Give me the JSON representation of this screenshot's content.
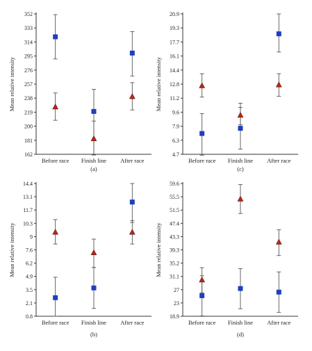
{
  "colors": {
    "square": "#1f3fbf",
    "triangle": "#b5281c",
    "axis": "#333333",
    "error": "#555555"
  },
  "chart_data": [
    {
      "id": "a",
      "type": "scatter",
      "caption": "(a)",
      "ylabel": "Mean relative intensity",
      "categories": [
        "Before race",
        "Finish line",
        "After race"
      ],
      "yticks": [
        "162",
        "181",
        "200",
        "219",
        "238",
        "257",
        "276",
        "295",
        "314",
        "333",
        "352"
      ],
      "ylim": [
        162,
        352
      ],
      "series": [
        {
          "marker": "square",
          "values": [
            321,
            220,
            299
          ],
          "err_low": [
            291,
            161,
            268
          ],
          "err_high": [
            351,
            250,
            328
          ]
        },
        {
          "marker": "triangle",
          "values": [
            226,
            183,
            240
          ],
          "err_low": [
            208,
            161,
            222
          ],
          "err_high": [
            245,
            207,
            259
          ]
        }
      ]
    },
    {
      "id": "c",
      "type": "scatter",
      "caption": "(c)",
      "ylabel": "Mean relative intensity",
      "categories": [
        "Before race",
        "Finish line",
        "After race"
      ],
      "yticks": [
        "4.7",
        "6.3",
        "7.9",
        "9.6",
        "11.2",
        "12.8",
        "14.4",
        "16.1",
        "17.7",
        "19.3",
        "20.9"
      ],
      "ylim": [
        4.7,
        20.9
      ],
      "series": [
        {
          "marker": "square",
          "values": [
            7.1,
            7.7,
            18.6
          ],
          "err_low": [
            4.6,
            5.3,
            16.5
          ],
          "err_high": [
            9.4,
            10.1,
            20.9
          ]
        },
        {
          "marker": "triangle",
          "values": [
            12.6,
            9.2,
            12.7
          ],
          "err_low": [
            11.3,
            8.1,
            11.4
          ],
          "err_high": [
            14.0,
            10.6,
            14.0
          ]
        }
      ]
    },
    {
      "id": "b",
      "type": "scatter",
      "caption": "(b)",
      "ylabel": "Mean relative intensity",
      "categories": [
        "Before race",
        "Finish line",
        "After race"
      ],
      "yticks": [
        "0.8",
        "2.1",
        "3.5",
        "4.9",
        "6.2",
        "7.6",
        "9",
        "10.3",
        "11.7",
        "13.1",
        "14.4"
      ],
      "ylim": [
        0.8,
        14.4
      ],
      "series": [
        {
          "marker": "square",
          "values": [
            2.7,
            3.7,
            12.5
          ],
          "err_low": [
            0.8,
            1.6,
            10.4
          ],
          "err_high": [
            4.8,
            5.8,
            14.4
          ]
        },
        {
          "marker": "triangle",
          "values": [
            9.4,
            7.3,
            9.4
          ],
          "err_low": [
            8.2,
            5.8,
            8.2
          ],
          "err_high": [
            10.7,
            8.7,
            10.6
          ]
        }
      ]
    },
    {
      "id": "d",
      "type": "scatter",
      "caption": "(d)",
      "ylabel": "Mean relative intensity",
      "categories": [
        "Before race",
        "Finish line",
        "After race"
      ],
      "yticks": [
        "18.9",
        "23",
        "27",
        "31.1",
        "35.2",
        "39.3",
        "43.3",
        "47.4",
        "51.5",
        "55.5",
        "59.6"
      ],
      "ylim": [
        18.9,
        59.6
      ],
      "series": [
        {
          "marker": "square",
          "values": [
            25.2,
            27.4,
            26.3
          ],
          "err_low": [
            19.0,
            21.2,
            20.1
          ],
          "err_high": [
            31.3,
            33.5,
            32.5
          ]
        },
        {
          "marker": "triangle",
          "values": [
            30.0,
            54.8,
            41.6
          ],
          "err_low": [
            26.1,
            50.4,
            37.5
          ],
          "err_high": [
            33.8,
            59.3,
            45.4
          ]
        }
      ]
    }
  ]
}
